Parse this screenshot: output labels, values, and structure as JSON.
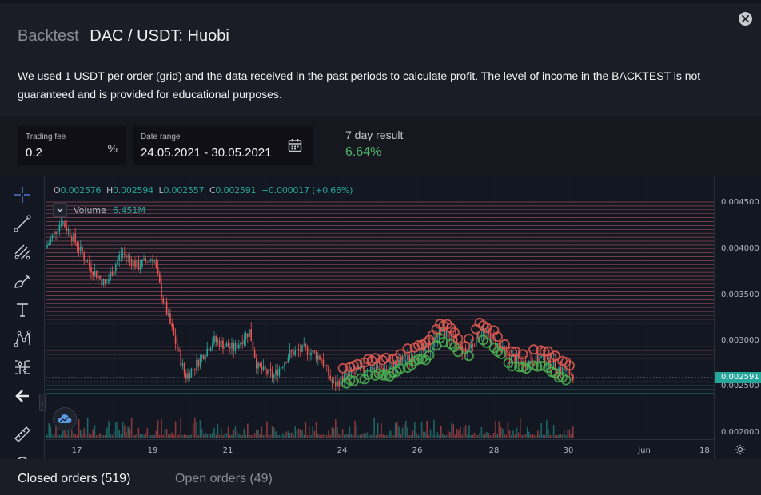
{
  "header": {
    "title_muted": "Backtest",
    "title_pair": "DAC / USDT: Huobi",
    "description": "We used 1 USDT per order (grid) and the data received in the past periods to calculate profit. The level of income in the BACKTEST is not guaranteed and is provided for educational purposes."
  },
  "params": {
    "fee_label": "Trading fee",
    "fee_value": "0.2",
    "fee_unit": "%",
    "date_label": "Date range",
    "date_value": "24.05.2021 - 30.05.2021",
    "result_label": "7 day result",
    "result_value": "6.64%"
  },
  "legend": {
    "o_key": "O",
    "o_val": "0.002576",
    "h_key": "H",
    "h_val": "0.002594",
    "l_key": "L",
    "l_val": "0.002557",
    "c_key": "C",
    "c_val": "0.002591",
    "change": "+0.000017 (+0.66%)",
    "volume_label": "Volume",
    "volume_value": "6.451M"
  },
  "chart": {
    "price_ticks": [
      "0.004500",
      "0.004000",
      "0.003500",
      "0.003000",
      "0.002500",
      "0.002000"
    ],
    "last_price": "0.002591",
    "time_ticks": [
      "17",
      "19",
      "21",
      "24",
      "26",
      "28",
      "30",
      "Jun",
      "18:"
    ]
  },
  "tabs": {
    "closed": "Closed orders (519)",
    "open": "Open orders (49)"
  },
  "colors": {
    "up": "#26a69a",
    "down": "#ef5350",
    "sell_marker": "#e25b52",
    "buy_marker": "#4caf50",
    "grid_line": "#c25b6a",
    "result": "#4db66a"
  },
  "icons": [
    "close-icon",
    "calendar-icon",
    "crosshair-icon",
    "trendline-icon",
    "fib-icon",
    "brush-icon",
    "text-icon",
    "pattern-icon",
    "measure-icon",
    "back-arrow-icon",
    "ruler-icon",
    "chevron-down-icon",
    "gear-icon",
    "cloud-logo-icon"
  ]
}
